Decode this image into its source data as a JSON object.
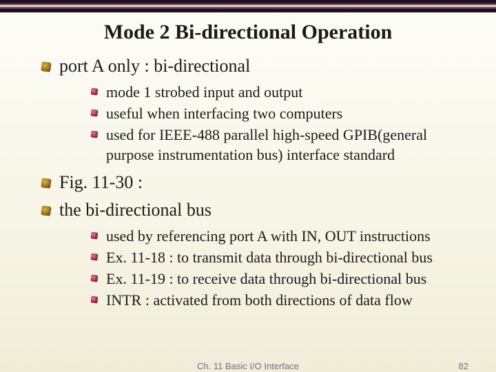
{
  "title": "Mode 2 Bi-directional Operation",
  "bullets": {
    "b0": "port A only : bi-directional",
    "b0s": {
      "s0": "mode 1 strobed input and output",
      "s1": "useful when interfacing two computers",
      "s2": "used for IEEE-488 parallel high-speed GPIB(general purpose instrumentation bus) interface standard"
    },
    "b1": "Fig. 11-30 :",
    "b2": "the bi-directional bus",
    "b2s": {
      "s0": "used by referencing port A with IN, OUT instructions",
      "s1": "Ex. 11-18 : to transmit data through bi-directional bus",
      "s2": "Ex. 11-19 : to receive data through bi-directional bus",
      "s3": "INTR : activated from both directions of data flow"
    }
  },
  "footer": {
    "center": "Ch. 11 Basic I/O Interface",
    "page": "82"
  },
  "style": {
    "title_fontsize": 30,
    "level1_fontsize": 26,
    "level2_fontsize": 22,
    "footer_fontsize": 13,
    "text_color": "#1a1a1a",
    "footer_color": "#7a6a8a",
    "l1_bullet_gradient": [
      "#d9b84a",
      "#a87c1e",
      "#5c3b00"
    ],
    "l2_bullet_gradient": [
      "#e47a9a",
      "#b02850",
      "#5a0020"
    ],
    "background_gradient": [
      "#fdfdf8",
      "#f7f5e6",
      "#f0ecd8"
    ]
  }
}
